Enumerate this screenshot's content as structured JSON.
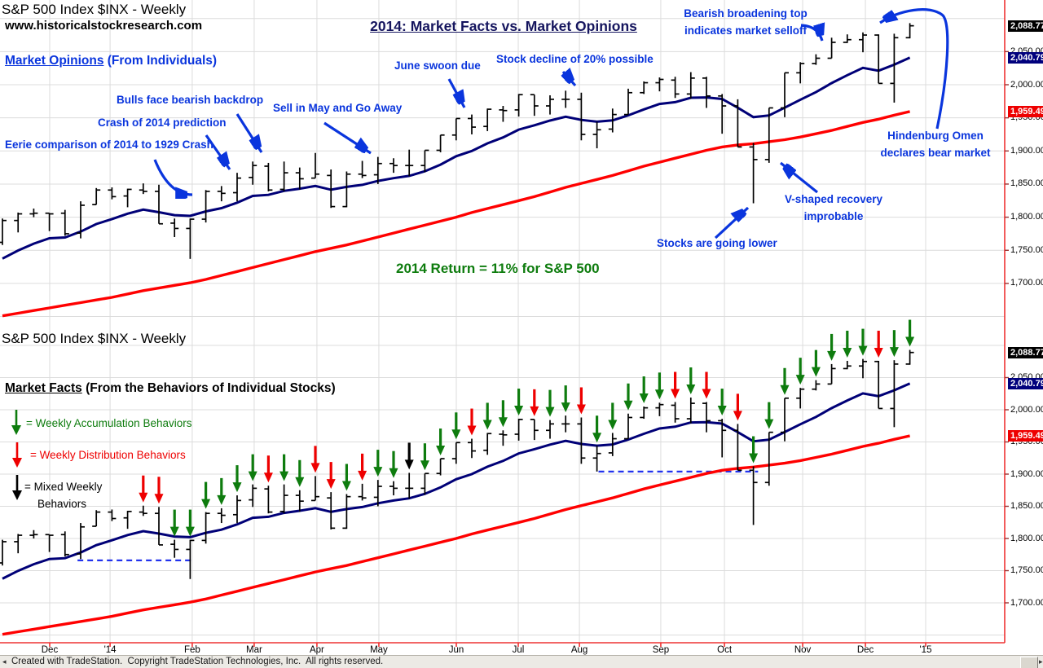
{
  "window": {
    "status_text": "Created with TradeStation.  Copyright TradeStation Technologies, Inc.  All rights reserved.",
    "scroll_left_icon": "◂",
    "scroll_right_icon": "▸"
  },
  "top_panel": {
    "title": "S&P 500 Index  $INX - Weekly",
    "website": "www.historicalstockresearch.com",
    "headline": "2014: Market Facts vs. Market Opinions",
    "label_lead": "Market Opinions",
    "label_rest": " (From Individuals)",
    "return_note": "2014 Return = 11% for S&P 500",
    "annotations": {
      "eerie": "Eerie comparison of 2014 to 1929 Crash",
      "crash": "Crash of 2014 prediction",
      "bulls": "Bulls face bearish backdrop",
      "sellmay": "Sell in May and Go Away",
      "june": "June swoon due",
      "decline": "Stock decline of 20% possible",
      "broadening1": "Bearish broadening top",
      "broadening2": "indicates market selloff",
      "hindenburg1": "Hindenburg Omen",
      "hindenburg2": "declares bear market",
      "vshaped1": "V-shaped recovery",
      "vshaped2": "improbable",
      "lower": "Stocks are going lower"
    }
  },
  "bottom_panel": {
    "title": "S&P 500 Index  $INX - Weekly",
    "label_lead": "Market Facts",
    "label_rest": " (From the Behaviors of Individual Stocks)",
    "legend": {
      "accumulation": "= Weekly Accumulation Behaviors",
      "distribution": "= Weekly Distribution Behaviors",
      "mixed1": "= Mixed Weekly",
      "mixed2": "Behaviors"
    }
  },
  "axis": {
    "plain_labels": [
      {
        "value": 2050,
        "label": "2,050.00"
      },
      {
        "value": 2000,
        "label": "2,000.00"
      },
      {
        "value": 1950,
        "label": "1,950.00"
      },
      {
        "value": 1900,
        "label": "1,900.00"
      },
      {
        "value": 1850,
        "label": "1,850.00"
      },
      {
        "value": 1800,
        "label": "1,800.00"
      },
      {
        "value": 1750,
        "label": "1,750.00"
      },
      {
        "value": 1700,
        "label": "1,700.00"
      }
    ],
    "boxes": [
      {
        "value": 2088.77,
        "label": "2,088.77",
        "bg": "#000000",
        "name": "last-close-price-box"
      },
      {
        "value": 2040.79,
        "label": "2,040.79",
        "bg": "#00007d",
        "name": "navy-ma-price-box"
      },
      {
        "value": 1959.49,
        "label": "1,959.49",
        "bg": "#ee0000",
        "name": "red-ma-price-box"
      }
    ],
    "months": [
      {
        "label": "Dec",
        "pos": 3.02
      },
      {
        "label": "'14",
        "pos": 6.88
      },
      {
        "label": "Feb",
        "pos": 12.13
      },
      {
        "label": "Mar",
        "pos": 16.09
      },
      {
        "label": "Apr",
        "pos": 20.1
      },
      {
        "label": "May",
        "pos": 24.06
      },
      {
        "label": "Jun",
        "pos": 29.01
      },
      {
        "label": "Jul",
        "pos": 32.97
      },
      {
        "label": "Aug",
        "pos": 36.88
      },
      {
        "label": "Sep",
        "pos": 42.08
      },
      {
        "label": "Oct",
        "pos": 46.15
      },
      {
        "label": "Nov",
        "pos": 51.15
      },
      {
        "label": "Dec",
        "pos": 55.16
      },
      {
        "label": "'15",
        "pos": 59.01
      }
    ]
  },
  "chart_data": {
    "type": "ohlc",
    "title": "S&P 500 Index $INX - Weekly, Nov 2013 - Dec 2014, shown in two stacked panels",
    "panels": [
      "Market Opinions (price, 10-wk and 40-wk averages)",
      "Market Facts (same price data plus weekly behavior arrows)"
    ],
    "x_axis": "weekly bars, Nov 2013 through Dec 2014",
    "y_range": [
      1650,
      2100
    ],
    "grid_levels": [
      2100,
      2050,
      2000,
      1950,
      1900,
      1850,
      1800,
      1750,
      1700,
      1650
    ],
    "weeks_ohlc": [
      [
        1762,
        1798,
        1758,
        1795
      ],
      [
        1795,
        1807,
        1777,
        1805
      ],
      [
        1805,
        1813,
        1800,
        1806
      ],
      [
        1806,
        1806,
        1779,
        1805
      ],
      [
        1806,
        1811,
        1772,
        1775
      ],
      [
        1776,
        1824,
        1768,
        1818
      ],
      [
        1819,
        1844,
        1819,
        1841
      ],
      [
        1841,
        1845,
        1827,
        1831
      ],
      [
        1832,
        1843,
        1815,
        1842
      ],
      [
        1841,
        1851,
        1835,
        1839
      ],
      [
        1839,
        1849,
        1790,
        1790
      ],
      [
        1791,
        1798,
        1770,
        1783
      ],
      [
        1783,
        1798,
        1737,
        1797
      ],
      [
        1797,
        1841,
        1792,
        1839
      ],
      [
        1839,
        1847,
        1824,
        1836
      ],
      [
        1837,
        1867,
        1824,
        1859
      ],
      [
        1860,
        1884,
        1849,
        1878
      ],
      [
        1877,
        1882,
        1839,
        1841
      ],
      [
        1842,
        1884,
        1839,
        1867
      ],
      [
        1867,
        1875,
        1842,
        1858
      ],
      [
        1859,
        1897,
        1859,
        1865
      ],
      [
        1863,
        1872,
        1814,
        1816
      ],
      [
        1816,
        1869,
        1815,
        1865
      ],
      [
        1865,
        1885,
        1859,
        1863
      ],
      [
        1864,
        1891,
        1850,
        1881
      ],
      [
        1881,
        1889,
        1867,
        1878
      ],
      [
        1878,
        1902,
        1862,
        1878
      ],
      [
        1878,
        1901,
        1868,
        1901
      ],
      [
        1901,
        1924,
        1898,
        1924
      ],
      [
        1924,
        1949,
        1916,
        1949
      ],
      [
        1949,
        1955,
        1925,
        1936
      ],
      [
        1937,
        1964,
        1930,
        1963
      ],
      [
        1962,
        1968,
        1944,
        1961
      ],
      [
        1962,
        1986,
        1952,
        1985
      ],
      [
        1985,
        1985,
        1953,
        1968
      ],
      [
        1968,
        1984,
        1955,
        1978
      ],
      [
        1978,
        1991,
        1965,
        1978
      ],
      [
        1978,
        1988,
        1916,
        1925
      ],
      [
        1925,
        1944,
        1904,
        1932
      ],
      [
        1933,
        1964,
        1928,
        1955
      ],
      [
        1955,
        1994,
        1955,
        1988
      ],
      [
        1988,
        2005,
        1986,
        2003
      ],
      [
        2003,
        2011,
        1990,
        2008
      ],
      [
        2007,
        2012,
        1980,
        1986
      ],
      [
        1986,
        2019,
        1979,
        2010
      ],
      [
        2010,
        2012,
        1965,
        1983
      ],
      [
        1983,
        1986,
        1926,
        1968
      ],
      [
        1968,
        1978,
        1906,
        1906
      ],
      [
        1906,
        1912,
        1821,
        1887
      ],
      [
        1887,
        1965,
        1882,
        1965
      ],
      [
        1965,
        2018,
        1951,
        2018
      ],
      [
        2018,
        2034,
        2002,
        2032
      ],
      [
        2032,
        2046,
        2030,
        2040
      ],
      [
        2040,
        2071,
        2040,
        2064
      ],
      [
        2064,
        2076,
        2063,
        2068
      ],
      [
        2068,
        2079,
        2049,
        2075
      ],
      [
        2075,
        2076,
        2002,
        2002
      ],
      [
        2002,
        2077,
        1973,
        2071
      ],
      [
        2071,
        2093,
        2070,
        2089
      ]
    ],
    "pre_closes": [
      1688,
      1710,
      1692,
      1691,
      1703,
      1745,
      1760,
      1762,
      1771
    ],
    "navy_ma": "10-week EMA of closes, ends at 2040.79",
    "red_ma_values": [
      1651,
      1655,
      1659,
      1663,
      1667,
      1671,
      1675,
      1679,
      1684,
      1689,
      1693,
      1697,
      1701,
      1706,
      1712,
      1718,
      1724,
      1730,
      1736,
      1742,
      1748,
      1753,
      1758,
      1764,
      1770,
      1776,
      1782,
      1788,
      1794,
      1800,
      1807,
      1813,
      1819,
      1825,
      1831,
      1838,
      1845,
      1851,
      1857,
      1863,
      1870,
      1877,
      1883,
      1889,
      1895,
      1901,
      1906,
      1909,
      1911,
      1914,
      1917,
      1921,
      1926,
      1931,
      1937,
      1943,
      1948,
      1954,
      1959.5
    ],
    "behavior_arrows": {
      "start_week": 9,
      "meaning": {
        "g": "weekly accumulation",
        "r": "weekly distribution",
        "k": "mixed weekly"
      },
      "colors": [
        "r",
        "r",
        "g",
        "g",
        "g",
        "g",
        "g",
        "g",
        "r",
        "g",
        "g",
        "r",
        "r",
        "g",
        "r",
        "g",
        "g",
        "k",
        "g",
        "g",
        "g",
        "r",
        "g",
        "g",
        "g",
        "r",
        "g",
        "g",
        "r",
        "g",
        "g",
        "g",
        "g",
        "g",
        "r",
        "g",
        "r",
        "g",
        "r",
        "g",
        "g",
        "g",
        "g",
        "g",
        "g",
        "g",
        "g",
        "r",
        "g",
        "g"
      ]
    },
    "support_lines": [
      {
        "from_week": 4.8,
        "to_week": 12.2,
        "price": 1766
      },
      {
        "from_week": 38.1,
        "to_week": 48.3,
        "price": 1904
      }
    ],
    "last_close": 2088.77,
    "navy_ma_last": 2040.79,
    "red_ma_last": 1959.49
  },
  "colors": {
    "annotation_blue": "#0a35dd",
    "headline_navy": "#15155e",
    "bull_green": "#0e7c0e",
    "bear_red": "#ee0000",
    "mixed_black": "#000000",
    "navy_line": "#000077",
    "red_line": "#ff0000",
    "grid": "#dcdcdc",
    "axis_red": "#ee3333",
    "support_dash_blue": "#2233ee"
  }
}
